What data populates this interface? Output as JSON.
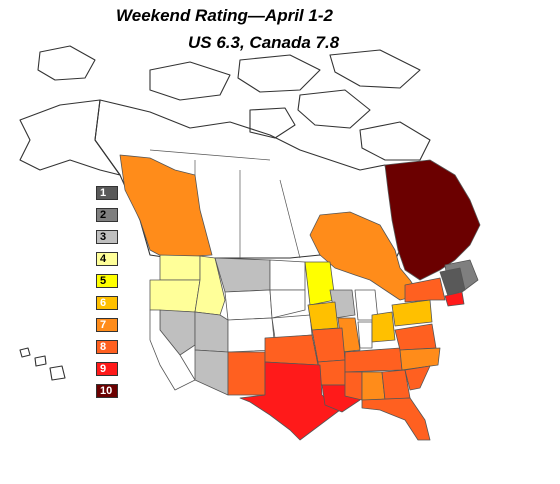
{
  "title": "Weekend Rating—April 1-2",
  "subtitle": "US 6.3, Canada 7.8",
  "legend": [
    {
      "label": "1",
      "color": "#595959",
      "text_color": "#ffffff"
    },
    {
      "label": "2",
      "color": "#7f7f7f",
      "text_color": "#000000"
    },
    {
      "label": "3",
      "color": "#bfbfbf",
      "text_color": "#000000"
    },
    {
      "label": "4",
      "color": "#ffff99",
      "text_color": "#000000"
    },
    {
      "label": "5",
      "color": "#ffff00",
      "text_color": "#000000"
    },
    {
      "label": "6",
      "color": "#ffc000",
      "text_color": "#ffffff"
    },
    {
      "label": "7",
      "color": "#ff8c1a",
      "text_color": "#ffffff"
    },
    {
      "label": "8",
      "color": "#ff6020",
      "text_color": "#ffffff"
    },
    {
      "label": "9",
      "color": "#ff1a1a",
      "text_color": "#ffffff"
    },
    {
      "label": "10",
      "color": "#6b0000",
      "text_color": "#ffffff"
    }
  ],
  "regions": [
    {
      "name": "British Columbia",
      "rating": 7
    },
    {
      "name": "Ontario",
      "rating": 7
    },
    {
      "name": "Quebec",
      "rating": 10
    },
    {
      "name": "Washington",
      "rating": 4
    },
    {
      "name": "Oregon",
      "rating": 4
    },
    {
      "name": "Idaho",
      "rating": 4
    },
    {
      "name": "Montana",
      "rating": 3
    },
    {
      "name": "Minnesota",
      "rating": 5
    },
    {
      "name": "Wisconsin",
      "rating": 3
    },
    {
      "name": "Texas",
      "rating": 9
    },
    {
      "name": "Oklahoma",
      "rating": 8
    },
    {
      "name": "New England",
      "rating": 1
    }
  ]
}
